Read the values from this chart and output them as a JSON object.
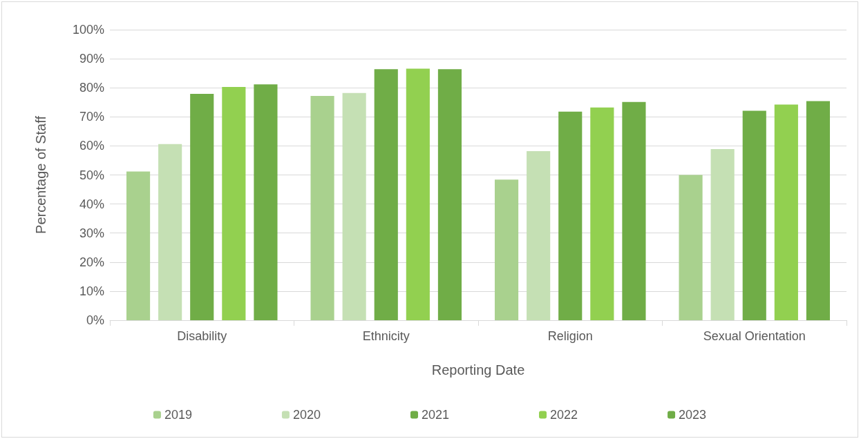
{
  "chart_data": {
    "type": "bar",
    "xlabel": "Reporting Date",
    "ylabel": "Percentage of Staff",
    "categories": [
      "Disability",
      "Ethnicity",
      "Religion",
      "Sexual Orientation"
    ],
    "series": [
      {
        "name": "2019",
        "color": "#a9d18e",
        "values": [
          51.2,
          77.2,
          48.4,
          50.0
        ]
      },
      {
        "name": "2020",
        "color": "#c5e0b4",
        "values": [
          60.6,
          78.2,
          58.2,
          58.9
        ]
      },
      {
        "name": "2021",
        "color": "#70ad47",
        "values": [
          77.9,
          86.4,
          71.8,
          72.1
        ]
      },
      {
        "name": "2022",
        "color": "#92d050",
        "values": [
          80.3,
          86.6,
          73.2,
          74.2
        ]
      },
      {
        "name": "2023",
        "color": "#70ad47",
        "values": [
          81.2,
          86.4,
          75.1,
          75.4
        ]
      }
    ],
    "ylim": [
      0,
      100
    ],
    "yticks": [
      {
        "value": 0,
        "label": "0%"
      },
      {
        "value": 10,
        "label": "10%"
      },
      {
        "value": 20,
        "label": "20%"
      },
      {
        "value": 30,
        "label": "30%"
      },
      {
        "value": 40,
        "label": "40%"
      },
      {
        "value": 50,
        "label": "50%"
      },
      {
        "value": 60,
        "label": "60%"
      },
      {
        "value": 70,
        "label": "70%"
      },
      {
        "value": 80,
        "label": "80%"
      },
      {
        "value": 90,
        "label": "90%"
      },
      {
        "value": 100,
        "label": "100%"
      }
    ],
    "grid": "y",
    "legend": "bottom"
  }
}
